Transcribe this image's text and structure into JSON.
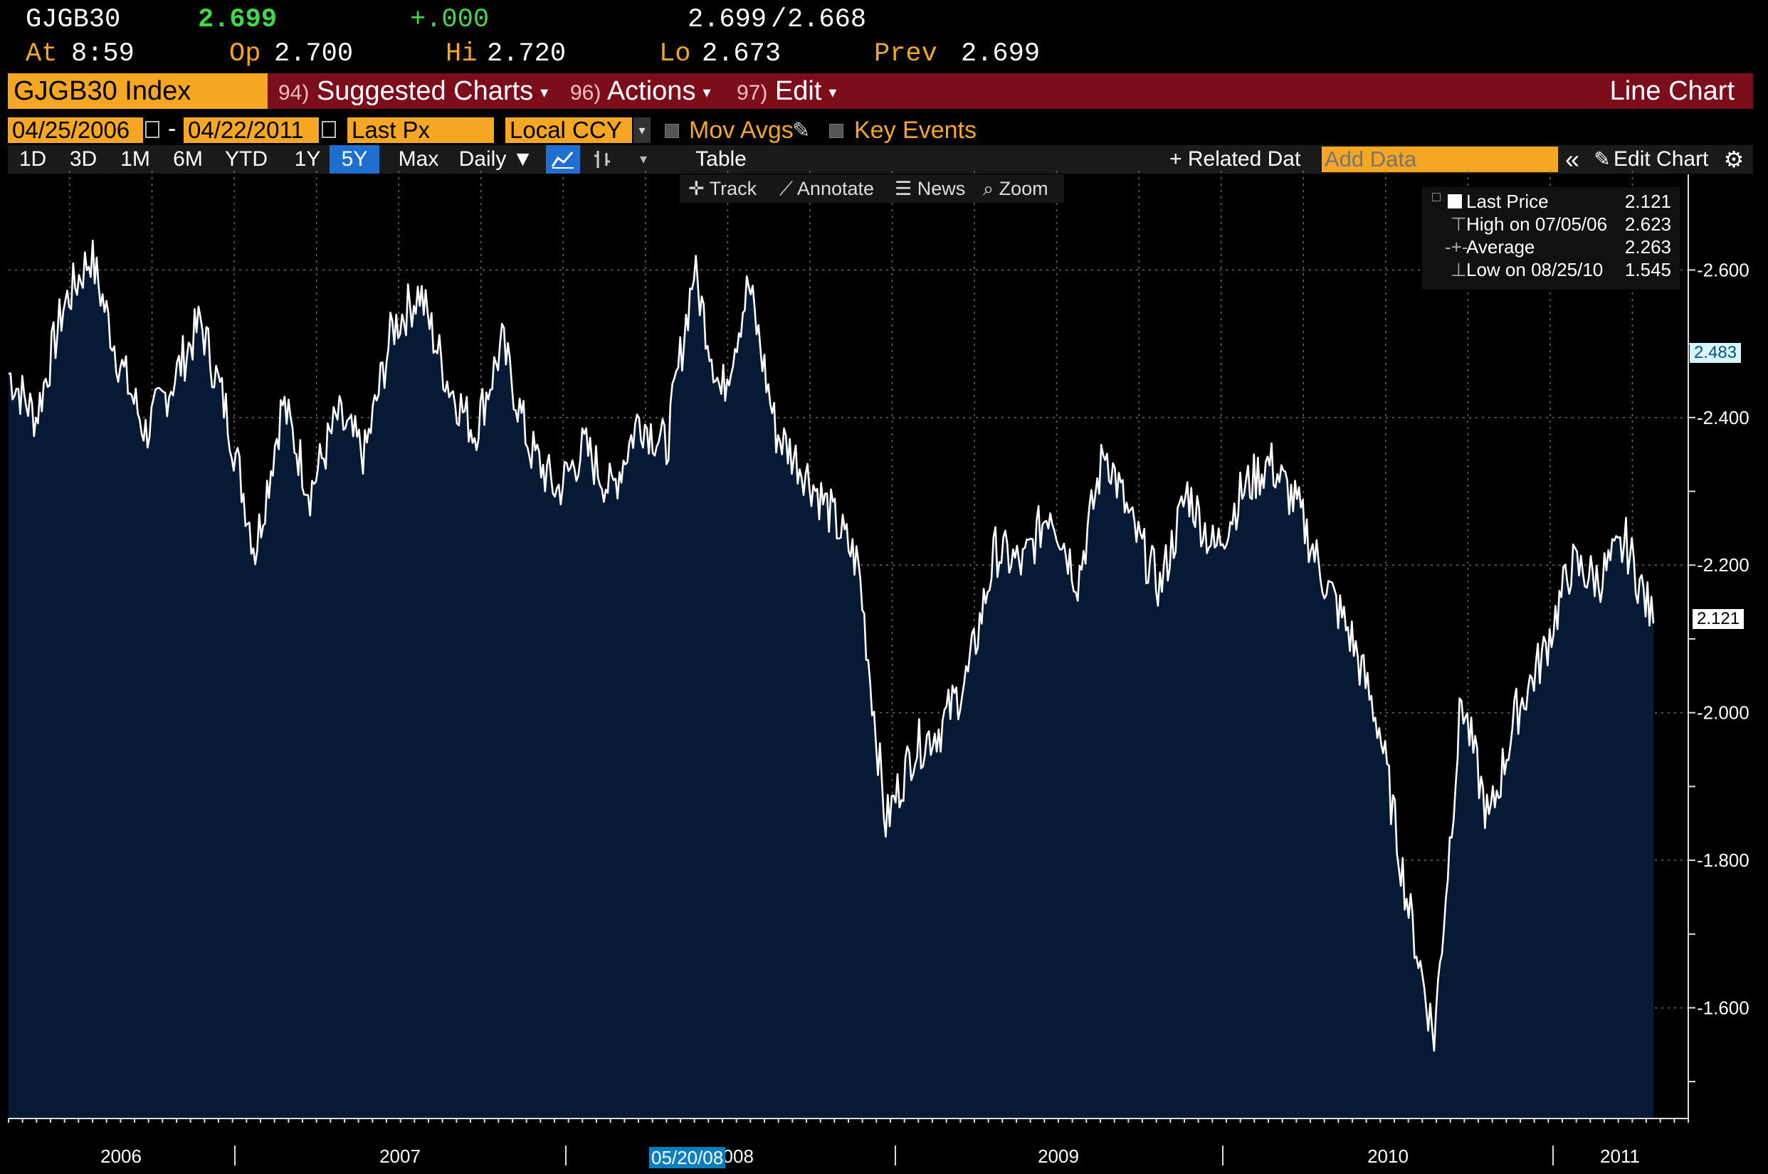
{
  "quote": {
    "ticker": "GJGB30",
    "last": "2.699",
    "change": "+.000",
    "bid_ask": "2.699",
    "bid_ask_sep": "/",
    "ask": "2.668",
    "time_label": "At",
    "time": "8:59",
    "open_label": "Op",
    "open": "2.700",
    "high_label": "Hi",
    "high": "2.720",
    "low_label": "Lo",
    "low": "2.673",
    "prev_label": "Prev",
    "prev": "2.699"
  },
  "menubar": {
    "security": "GJGB30 Index",
    "suggested_num": "94)",
    "suggested": "Suggested Charts",
    "actions_num": "96)",
    "actions": "Actions",
    "edit_num": "97)",
    "edit": "Edit",
    "chart_type": "Line Chart"
  },
  "params": {
    "start_date": "04/25/2006",
    "date_sep": "-",
    "end_date": "04/22/2011",
    "field": "Last Px",
    "currency": "Local CCY",
    "mov_avgs": "Mov Avgs",
    "key_events": "Key Events"
  },
  "rangebar": {
    "ranges": [
      "1D",
      "3D",
      "1M",
      "6M",
      "YTD",
      "1Y",
      "5Y",
      "Max"
    ],
    "selected": "5Y",
    "frequency": "Daily ▼",
    "table": "Table",
    "related": "+ Related Dat",
    "add_data_placeholder": "Add Data",
    "edit_chart": "Edit Chart"
  },
  "tools": {
    "track": "Track",
    "annotate": "Annotate",
    "news": "News",
    "zoom": "Zoom"
  },
  "legend": {
    "last_label": "Last Price",
    "last": "2.121",
    "high_label": "High on 07/05/06",
    "high": "2.623",
    "avg_label": "Average",
    "avg": "2.263",
    "low_label": "Low on 08/25/10",
    "low": "1.545"
  },
  "cursor_date": "05/20/08",
  "chart_data": {
    "type": "area",
    "y_ticks": [
      "2.600",
      "2.400",
      "2.200",
      "2.000",
      "1.800",
      "1.600"
    ],
    "y_tick_values": [
      2.6,
      2.4,
      2.2,
      2.0,
      1.8,
      1.6
    ],
    "ylim": [
      1.45,
      2.72
    ],
    "x_labels": [
      "2006",
      "2007",
      "2008",
      "2009",
      "2010",
      "2011"
    ],
    "price_tags": [
      "2.483",
      "2.121"
    ],
    "x": [
      "2006-04",
      "2006-05",
      "2006-06",
      "2006-07",
      "2006-08",
      "2006-09",
      "2006-10",
      "2006-11",
      "2006-12",
      "2007-01",
      "2007-02",
      "2007-03",
      "2007-04",
      "2007-05",
      "2007-06",
      "2007-07",
      "2007-08",
      "2007-09",
      "2007-10",
      "2007-11",
      "2007-12",
      "2008-01",
      "2008-02",
      "2008-03",
      "2008-04",
      "2008-05",
      "2008-06",
      "2008-07",
      "2008-08",
      "2008-09",
      "2008-10",
      "2008-11",
      "2008-12",
      "2009-01",
      "2009-02",
      "2009-03",
      "2009-04",
      "2009-05",
      "2009-06",
      "2009-07",
      "2009-08",
      "2009-09",
      "2009-10",
      "2009-11",
      "2009-12",
      "2010-01",
      "2010-02",
      "2010-03",
      "2010-04",
      "2010-05",
      "2010-06",
      "2010-07",
      "2010-08",
      "2010-09",
      "2010-10",
      "2010-11",
      "2010-12",
      "2011-01",
      "2011-02",
      "2011-03",
      "2011-04"
    ],
    "series": [
      {
        "values": [
          2.46,
          2.4,
          2.55,
          2.62,
          2.48,
          2.38,
          2.45,
          2.53,
          2.4,
          2.22,
          2.42,
          2.3,
          2.4,
          2.35,
          2.52,
          2.57,
          2.45,
          2.38,
          2.5,
          2.36,
          2.3,
          2.36,
          2.3,
          2.4,
          2.36,
          2.6,
          2.43,
          2.58,
          2.38,
          2.33,
          2.27,
          2.2,
          1.85,
          1.95,
          1.98,
          2.05,
          2.22,
          2.2,
          2.28,
          2.18,
          2.36,
          2.25,
          2.17,
          2.3,
          2.22,
          2.3,
          2.34,
          2.28,
          2.18,
          2.1,
          1.98,
          1.75,
          1.56,
          2.02,
          1.85,
          2.0,
          2.08,
          2.2,
          2.18,
          2.23,
          2.121
        ]
      }
    ]
  }
}
